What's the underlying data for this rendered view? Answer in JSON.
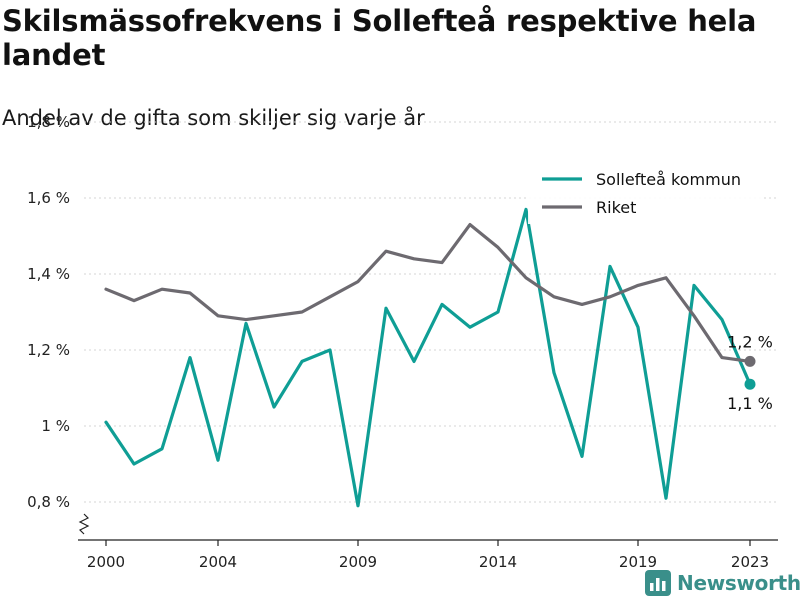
{
  "title": "Skilsmässofrekvens i Sollefteå respektive hela landet",
  "subtitle": "Andel av de gifta som skiljer sig varje år",
  "brand": "Newsworthy",
  "chart_data": {
    "type": "line",
    "x": [
      2000,
      2001,
      2002,
      2003,
      2004,
      2005,
      2006,
      2007,
      2008,
      2009,
      2010,
      2011,
      2012,
      2013,
      2014,
      2015,
      2016,
      2017,
      2018,
      2019,
      2020,
      2021,
      2022,
      2023
    ],
    "x_ticks": [
      2000,
      2004,
      2009,
      2014,
      2019,
      2023
    ],
    "xlim": [
      1999,
      2024
    ],
    "ylim": [
      0.7,
      1.8
    ],
    "y_ticks": [
      {
        "value": 0.8,
        "label": "0,8 %"
      },
      {
        "value": 1.0,
        "label": "1 %"
      },
      {
        "value": 1.2,
        "label": "1,2 %"
      },
      {
        "value": 1.4,
        "label": "1,4 %"
      },
      {
        "value": 1.6,
        "label": "1,6 %"
      },
      {
        "value": 1.8,
        "label": "1,8 %"
      }
    ],
    "grid": "horizontal",
    "legend": "top-right",
    "series": [
      {
        "name": "Sollefteå kommun",
        "color": "#0f9e95",
        "values": [
          1.01,
          0.9,
          0.94,
          1.18,
          0.91,
          1.27,
          1.05,
          1.17,
          1.2,
          0.79,
          1.31,
          1.17,
          1.32,
          1.26,
          1.3,
          1.57,
          1.14,
          0.92,
          1.42,
          1.26,
          0.81,
          1.37,
          1.28,
          1.11
        ],
        "end_label": "1,1 %"
      },
      {
        "name": "Riket",
        "color": "#6d6a70",
        "values": [
          1.36,
          1.33,
          1.36,
          1.35,
          1.29,
          1.28,
          1.29,
          1.3,
          1.34,
          1.38,
          1.46,
          1.44,
          1.43,
          1.53,
          1.47,
          1.39,
          1.34,
          1.32,
          1.34,
          1.37,
          1.39,
          1.29,
          1.18,
          1.17
        ],
        "end_label": "1,2 %"
      }
    ]
  }
}
